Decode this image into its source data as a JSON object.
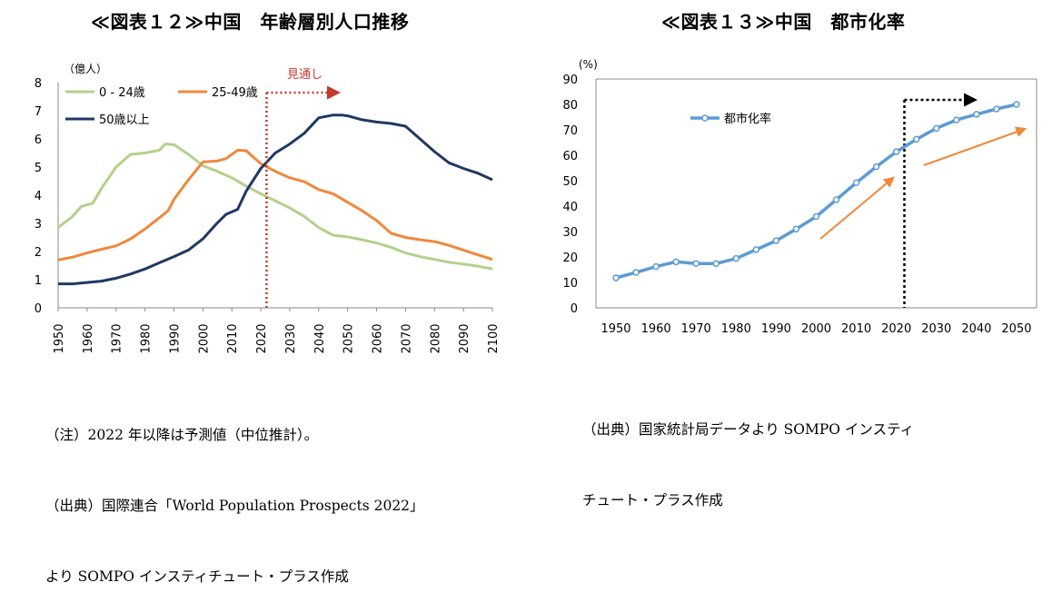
{
  "chart_data": [
    {
      "type": "line",
      "title": "≪図表１２≫中国　年齢層別人口推移",
      "unit_label": "（億人）",
      "annotation": "見通し",
      "x_ticks": [
        1950,
        1960,
        1970,
        1980,
        1990,
        2000,
        2010,
        2020,
        2030,
        2040,
        2050,
        2060,
        2070,
        2080,
        2090,
        2100
      ],
      "ylim": [
        0,
        8
      ],
      "y_ticks": [
        0,
        1,
        2,
        3,
        4,
        5,
        6,
        7,
        8
      ],
      "forecast_start": 2022,
      "legend_position": "top-left",
      "grid": false,
      "series": [
        {
          "name": "0 - 24歳",
          "color": "#b4d08c",
          "x": [
            1950,
            1955,
            1958,
            1962,
            1965,
            1970,
            1975,
            1980,
            1985,
            1987,
            1990,
            1995,
            2000,
            2005,
            2010,
            2015,
            2020,
            2025,
            2030,
            2035,
            2040,
            2045,
            2050,
            2055,
            2060,
            2065,
            2070,
            2075,
            2080,
            2085,
            2090,
            2095,
            2100
          ],
          "values": [
            2.85,
            3.25,
            3.6,
            3.72,
            4.25,
            5.0,
            5.45,
            5.5,
            5.6,
            5.82,
            5.8,
            5.45,
            5.05,
            4.85,
            4.62,
            4.32,
            4.05,
            3.8,
            3.55,
            3.25,
            2.85,
            2.58,
            2.52,
            2.42,
            2.3,
            2.15,
            1.95,
            1.82,
            1.72,
            1.62,
            1.55,
            1.48,
            1.38
          ]
        },
        {
          "name": "25-49歳",
          "color": "#f0883c",
          "x": [
            1950,
            1955,
            1960,
            1965,
            1970,
            1975,
            1980,
            1985,
            1988,
            1990,
            1995,
            2000,
            2005,
            2008,
            2012,
            2015,
            2018,
            2020,
            2025,
            2030,
            2035,
            2040,
            2045,
            2050,
            2055,
            2060,
            2065,
            2070,
            2075,
            2080,
            2085,
            2090,
            2095,
            2100
          ],
          "values": [
            1.7,
            1.8,
            1.95,
            2.08,
            2.2,
            2.45,
            2.8,
            3.2,
            3.45,
            3.85,
            4.55,
            5.18,
            5.22,
            5.3,
            5.6,
            5.58,
            5.3,
            5.12,
            4.85,
            4.62,
            4.48,
            4.2,
            4.05,
            3.75,
            3.45,
            3.1,
            2.65,
            2.5,
            2.42,
            2.35,
            2.22,
            2.05,
            1.88,
            1.72
          ]
        },
        {
          "name": "50歳以上",
          "color": "#1f3864",
          "x": [
            1950,
            1955,
            1960,
            1965,
            1970,
            1975,
            1980,
            1985,
            1990,
            1995,
            2000,
            2005,
            2008,
            2012,
            2015,
            2020,
            2025,
            2030,
            2035,
            2040,
            2045,
            2048,
            2050,
            2055,
            2060,
            2065,
            2070,
            2075,
            2080,
            2085,
            2090,
            2095,
            2100
          ],
          "values": [
            0.85,
            0.85,
            0.9,
            0.95,
            1.05,
            1.2,
            1.38,
            1.6,
            1.82,
            2.05,
            2.45,
            3.02,
            3.32,
            3.5,
            4.15,
            4.95,
            5.5,
            5.82,
            6.2,
            6.75,
            6.85,
            6.85,
            6.82,
            6.68,
            6.6,
            6.55,
            6.45,
            6.0,
            5.55,
            5.15,
            4.95,
            4.78,
            4.55
          ]
        }
      ]
    },
    {
      "type": "line",
      "title": "≪図表１３≫中国　都市化率",
      "unit_label": "(%)",
      "x_ticks": [
        1950,
        1960,
        1970,
        1980,
        1990,
        2000,
        2010,
        2020,
        2030,
        2040,
        2050
      ],
      "ylim": [
        0,
        90
      ],
      "y_ticks": [
        0,
        10,
        20,
        30,
        40,
        50,
        60,
        70,
        80,
        90
      ],
      "forecast_start": 2022,
      "legend_position": "top-left",
      "grid": false,
      "series": [
        {
          "name": "都市化率",
          "color": "#5b9bd5",
          "x": [
            1950,
            1955,
            1960,
            1965,
            1970,
            1975,
            1980,
            1985,
            1990,
            1995,
            2000,
            2005,
            2010,
            2015,
            2020,
            2025,
            2030,
            2035,
            2040,
            2045,
            2050
          ],
          "values": [
            11.8,
            13.9,
            16.2,
            18.1,
            17.4,
            17.4,
            19.4,
            22.9,
            26.4,
            31.0,
            35.9,
            42.5,
            49.2,
            55.5,
            61.4,
            66.3,
            70.6,
            73.9,
            76.1,
            78.2,
            80.0
          ]
        }
      ]
    }
  ],
  "notes": {
    "left": [
      "（注）2022 年以降は予測値（中位推計）。",
      "（出典）国際連合「World Population Prospects 2022」",
      "より SOMPO インスティチュート・プラス作成"
    ],
    "right": [
      "（出典）国家統計局データより SOMPO インスティ",
      "チュート・プラス作成"
    ]
  },
  "colors": {
    "forecast_line_left": "#c0392b",
    "forecast_line_right": "#000000",
    "trend_arrow": "#f0883c"
  }
}
